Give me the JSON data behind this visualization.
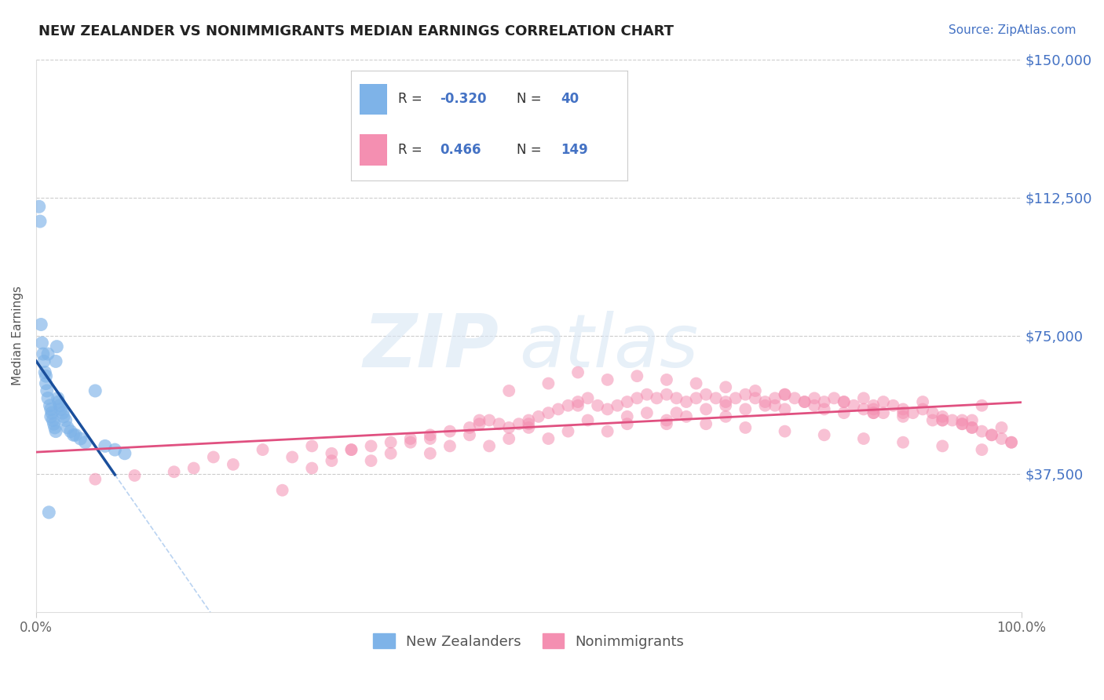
{
  "title": "NEW ZEALANDER VS NONIMMIGRANTS MEDIAN EARNINGS CORRELATION CHART",
  "source": "Source: ZipAtlas.com",
  "ylabel": "Median Earnings",
  "xlim": [
    0,
    100
  ],
  "ylim": [
    0,
    150000
  ],
  "yticks": [
    0,
    37500,
    75000,
    112500,
    150000
  ],
  "ytick_labels": [
    "",
    "$37,500",
    "$75,000",
    "$112,500",
    "$150,000"
  ],
  "xtick_labels": [
    "0.0%",
    "100.0%"
  ],
  "legend_label_nz": "New Zealanders",
  "legend_label_nonimm": "Nonimmigrants",
  "title_color": "#222222",
  "source_color": "#4472C4",
  "axis_label_color": "#555555",
  "ytick_color": "#4472C4",
  "watermark_zip": "ZIP",
  "watermark_atlas": "atlas",
  "nz_color": "#7EB3E8",
  "nonimm_color": "#F48FB1",
  "nz_line_color": "#1A4F9C",
  "nonimm_line_color": "#E05080",
  "nz_dash_color": "#A8C8EE",
  "nz_R": -0.32,
  "nz_N": 40,
  "nonimm_R": 0.466,
  "nonimm_N": 149,
  "nz_points_x": [
    0.3,
    0.4,
    0.5,
    0.6,
    0.7,
    0.8,
    0.9,
    1.0,
    1.1,
    1.2,
    1.3,
    1.4,
    1.5,
    1.6,
    1.7,
    1.8,
    1.9,
    2.0,
    2.1,
    2.2,
    2.3,
    2.4,
    2.5,
    2.7,
    2.8,
    3.0,
    3.2,
    3.5,
    3.8,
    4.0,
    4.5,
    5.0,
    6.0,
    7.0,
    8.0,
    9.0,
    1.0,
    1.5,
    2.0,
    1.2
  ],
  "nz_points_y": [
    110000,
    106000,
    78000,
    73000,
    70000,
    68000,
    65000,
    62000,
    60000,
    58000,
    27000,
    56000,
    55000,
    54000,
    52000,
    51000,
    50000,
    49000,
    72000,
    58000,
    57000,
    56000,
    55000,
    54000,
    53000,
    52000,
    50000,
    49000,
    48000,
    48000,
    47000,
    46000,
    60000,
    45000,
    44000,
    43000,
    64000,
    53000,
    68000,
    70000
  ],
  "nonimm_points_x": [
    6,
    18,
    23,
    25,
    28,
    30,
    32,
    34,
    36,
    38,
    40,
    42,
    44,
    45,
    46,
    47,
    48,
    49,
    50,
    51,
    52,
    53,
    54,
    55,
    56,
    57,
    58,
    59,
    60,
    61,
    62,
    63,
    64,
    65,
    66,
    67,
    68,
    69,
    70,
    71,
    72,
    73,
    74,
    75,
    76,
    77,
    78,
    79,
    80,
    81,
    82,
    83,
    84,
    85,
    86,
    87,
    88,
    89,
    90,
    91,
    92,
    93,
    94,
    95,
    96,
    97,
    98,
    99,
    48,
    52,
    55,
    58,
    61,
    64,
    67,
    70,
    73,
    76,
    79,
    82,
    85,
    88,
    91,
    94,
    60,
    64,
    68,
    72,
    76,
    80,
    84,
    88,
    92,
    96,
    30,
    36,
    42,
    48,
    54,
    60,
    66,
    72,
    78,
    84,
    90,
    96,
    28,
    34,
    40,
    46,
    52,
    58,
    64,
    70,
    76,
    82,
    88,
    94,
    20,
    26,
    32,
    38,
    44,
    50,
    56,
    62,
    68,
    74,
    80,
    86,
    92,
    98,
    10,
    14,
    16,
    55,
    65,
    75,
    85,
    95,
    40,
    45,
    50,
    70,
    85,
    92,
    95,
    97,
    99
  ],
  "nonimm_points_y": [
    36000,
    42000,
    44000,
    33000,
    45000,
    43000,
    44000,
    45000,
    46000,
    47000,
    48000,
    49000,
    50000,
    51000,
    52000,
    51000,
    50000,
    51000,
    52000,
    53000,
    54000,
    55000,
    56000,
    57000,
    58000,
    56000,
    55000,
    56000,
    57000,
    58000,
    59000,
    58000,
    59000,
    58000,
    57000,
    58000,
    59000,
    58000,
    57000,
    58000,
    59000,
    58000,
    57000,
    58000,
    59000,
    58000,
    57000,
    56000,
    57000,
    58000,
    57000,
    56000,
    55000,
    56000,
    57000,
    56000,
    55000,
    54000,
    55000,
    54000,
    53000,
    52000,
    51000,
    50000,
    49000,
    48000,
    47000,
    46000,
    60000,
    62000,
    65000,
    63000,
    64000,
    63000,
    62000,
    61000,
    60000,
    59000,
    58000,
    57000,
    55000,
    54000,
    52000,
    51000,
    53000,
    52000,
    51000,
    50000,
    49000,
    48000,
    47000,
    46000,
    45000,
    44000,
    41000,
    43000,
    45000,
    47000,
    49000,
    51000,
    53000,
    55000,
    57000,
    58000,
    57000,
    56000,
    39000,
    41000,
    43000,
    45000,
    47000,
    49000,
    51000,
    53000,
    55000,
    54000,
    53000,
    52000,
    40000,
    42000,
    44000,
    46000,
    48000,
    50000,
    52000,
    54000,
    55000,
    56000,
    55000,
    54000,
    52000,
    50000,
    37000,
    38000,
    39000,
    56000,
    54000,
    56000,
    54000,
    52000,
    47000,
    52000,
    51000,
    56000,
    54000,
    52000,
    50000,
    48000,
    46000
  ]
}
